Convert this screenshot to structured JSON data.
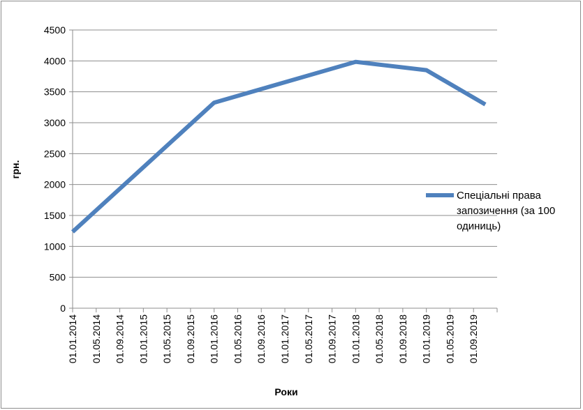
{
  "chart_data": {
    "type": "line",
    "title": "",
    "xlabel": "Роки",
    "ylabel": "грн.",
    "ylim": [
      0,
      4500
    ],
    "yticks": [
      0,
      500,
      1000,
      1500,
      2000,
      2500,
      3000,
      3500,
      4000,
      4500
    ],
    "grid": "horizontal",
    "legend_position": "right",
    "categories": [
      "01.01.2014",
      "01.05.2014",
      "01.09.2014",
      "01.01.2015",
      "01.05.2015",
      "01.09.2015",
      "01.01.2016",
      "01.05.2016",
      "01.09.2016",
      "01.01.2017",
      "01.05.2017",
      "01.09.2017",
      "01.01.2018",
      "01.05.2018",
      "01.09.2018",
      "01.01.2019",
      "01.05.2019",
      "01.09.2019"
    ],
    "series": [
      {
        "name": "Спеціальні права запозичення (за 100 одиниць)",
        "legend_lines": [
          "Спеціальні права",
          "запозичення (за 100",
          "одиниць)"
        ],
        "color": "#4f81bd",
        "x": [
          0,
          6,
          12,
          15,
          17.5
        ],
        "values": [
          1235,
          3325,
          3985,
          3850,
          3295
        ]
      }
    ]
  }
}
